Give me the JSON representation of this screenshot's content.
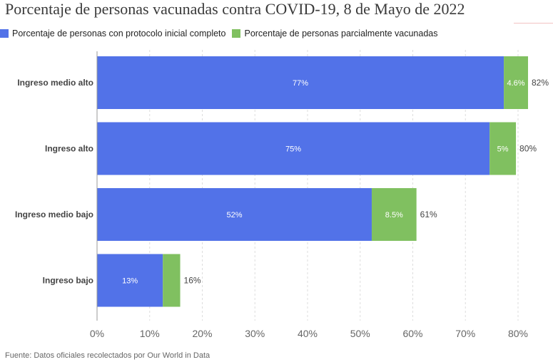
{
  "chart_data": {
    "type": "bar",
    "orientation": "horizontal",
    "stacked": true,
    "title": "Porcentaje de personas vacunadas contra COVID-19, 8 de Mayo de 2022",
    "categories": [
      "Ingreso medio alto",
      "Ingreso alto",
      "Ingreso medio bajo",
      "Ingreso bajo"
    ],
    "series": [
      {
        "name": "Porcentaje de personas con protocolo inicial completo",
        "color": "#5272e8",
        "values": [
          77.3,
          74.6,
          52.2,
          12.5
        ],
        "labels": [
          "77%",
          "75%",
          "52%",
          "13%"
        ]
      },
      {
        "name": "Porcentaje de personas parcialmente vacunadas",
        "color": "#80c060",
        "values": [
          4.6,
          5.0,
          8.5,
          3.3
        ],
        "labels": [
          "4.6%",
          "5%",
          "8.5%",
          ""
        ]
      }
    ],
    "totals": [
      "82%",
      "80%",
      "61%",
      "16%"
    ],
    "xlim": [
      0,
      85
    ],
    "xticks": [
      0,
      10,
      20,
      30,
      40,
      50,
      60,
      70,
      80
    ],
    "xtick_labels": [
      "0%",
      "10%",
      "20%",
      "30%",
      "40%",
      "50%",
      "60%",
      "70%",
      "80%"
    ],
    "xlabel": "",
    "ylabel": "",
    "grid": true,
    "legend_position": "top-left"
  },
  "source_note": "Fuente: Datos oficiales recolectados por Our World in Data"
}
